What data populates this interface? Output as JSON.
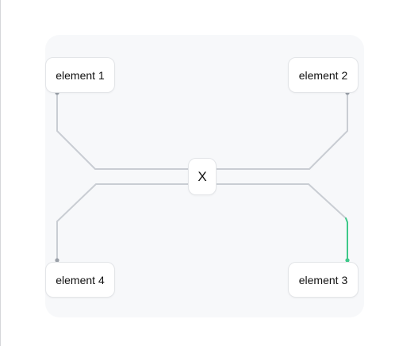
{
  "diagram": {
    "hub": {
      "label": "X"
    },
    "nodes": [
      {
        "id": "1",
        "label": "element 1"
      },
      {
        "id": "2",
        "label": "element 2"
      },
      {
        "id": "3",
        "label": "element 3"
      },
      {
        "id": "4",
        "label": "element 4"
      }
    ],
    "edges": [
      {
        "from": "1",
        "to": "X",
        "active": false
      },
      {
        "from": "2",
        "to": "X",
        "active": false
      },
      {
        "from": "3",
        "to": "X",
        "active": true
      },
      {
        "from": "4",
        "to": "X",
        "active": false
      }
    ],
    "colors": {
      "background": "#ffffff",
      "panel": "#f7f8fa",
      "edge": "#c9cdd3",
      "edge_active": "#3ec989",
      "port": "#9aa0a8"
    }
  }
}
